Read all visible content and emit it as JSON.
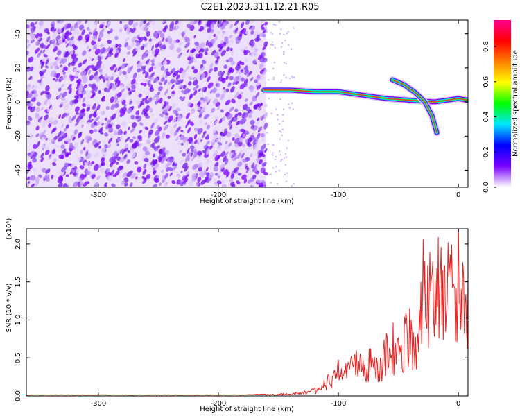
{
  "title": "C2E1.2023.311.12.21.R05",
  "chart_data": [
    {
      "type": "heatmap",
      "xlabel": "Height of straight line (km)",
      "ylabel": "Frequency (Hz)",
      "xlim": [
        -360,
        8
      ],
      "ylim": [
        -50,
        48
      ],
      "xticks": [
        -300,
        -200,
        -100,
        0
      ],
      "xtick_labels": [
        "-300",
        "-200",
        "-100",
        "0"
      ],
      "yticks": [
        -40,
        -20,
        0,
        20,
        40
      ],
      "ytick_labels": [
        "-40",
        "-20",
        "0",
        "20",
        "40"
      ],
      "grid": false,
      "noise_region_x": [
        -360,
        -160
      ],
      "signal_tracks": [
        {
          "x": [
            -162,
            -140,
            -120,
            -100,
            -80,
            -60,
            -40,
            -20,
            -10,
            0,
            8
          ],
          "y": [
            7,
            7,
            6,
            6,
            4,
            2,
            1,
            0,
            1,
            2,
            1
          ]
        },
        {
          "x": [
            -55,
            -45,
            -35,
            -28,
            -22,
            -18
          ],
          "y": [
            13,
            10,
            5,
            0,
            -8,
            -18
          ]
        }
      ],
      "colorbar": {
        "label": "Normalized spectral amplitude",
        "range": [
          0,
          0.95
        ],
        "ticks": [
          0.0,
          0.2,
          0.4,
          0.6,
          0.8
        ],
        "tick_labels": [
          "0.0",
          "0.2",
          "0.4",
          "0.6",
          "0.8"
        ],
        "colormap": [
          "#ffffff",
          "#7a00ff",
          "#0000ff",
          "#00e5ff",
          "#00ff00",
          "#ffff00",
          "#ff8000",
          "#ff0000",
          "#ff0090"
        ]
      }
    },
    {
      "type": "line",
      "xlabel": "Height of straight line (km)",
      "ylabel": "SNR (10 * v/v)",
      "scale_label": "(x10⁴)",
      "xlim": [
        -360,
        8
      ],
      "ylim": [
        0,
        2.2
      ],
      "xticks": [
        -300,
        -200,
        -100,
        0
      ],
      "xtick_labels": [
        "-300",
        "-200",
        "-100",
        "0"
      ],
      "yticks": [
        0.0,
        0.5,
        1.0,
        1.5,
        2.0
      ],
      "ytick_labels": [
        "0.0",
        "0.5",
        "1.0",
        "1.5",
        "2.0"
      ],
      "grid": false,
      "series": [
        {
          "color": "#e8201e",
          "x": [
            -360,
            -340,
            -320,
            -300,
            -280,
            -260,
            -240,
            -220,
            -200,
            -180,
            -160,
            -140,
            -130,
            -120,
            -115,
            -110,
            -105,
            -100,
            -95,
            -90,
            -85,
            -80,
            -75,
            -70,
            -65,
            -60,
            -55,
            -50,
            -45,
            -40,
            -35,
            -30,
            -28,
            -25,
            -22,
            -20,
            -18,
            -15,
            -12,
            -10,
            -8,
            -5,
            -3,
            0,
            3,
            5,
            8
          ],
          "y": [
            0.01,
            0.01,
            0.01,
            0.01,
            0.01,
            0.01,
            0.01,
            0.01,
            0.01,
            0.01,
            0.02,
            0.03,
            0.05,
            0.08,
            0.12,
            0.2,
            0.3,
            0.4,
            0.35,
            0.45,
            0.55,
            0.4,
            0.5,
            0.6,
            0.45,
            0.7,
            0.8,
            0.65,
            0.9,
            1.0,
            0.75,
            1.4,
            2.2,
            1.3,
            1.9,
            1.5,
            2.05,
            1.6,
            1.85,
            1.2,
            2.1,
            1.5,
            1.3,
            1.95,
            1.45,
            1.8,
            1.6
          ]
        }
      ]
    }
  ]
}
